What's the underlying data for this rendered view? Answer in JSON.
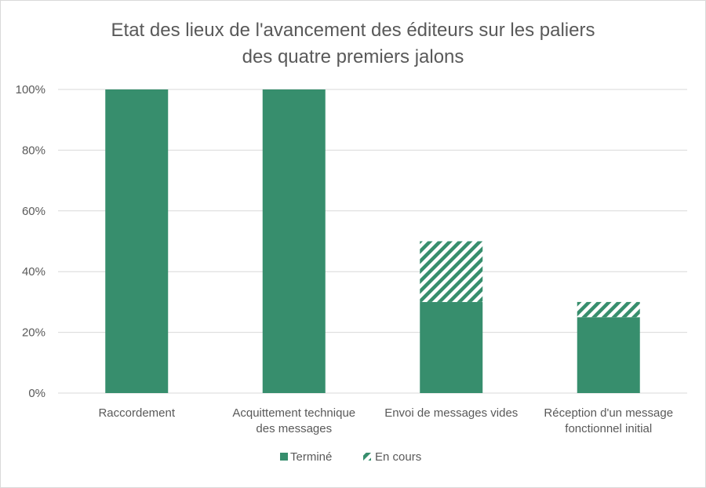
{
  "chart_data": {
    "type": "bar",
    "stacked": true,
    "title_lines": [
      "Etat des lieux de l'avancement des éditeurs sur les paliers",
      "des quatre premiers jalons"
    ],
    "categories": [
      [
        "Raccordement"
      ],
      [
        "Acquittement technique",
        "des messages"
      ],
      [
        "Envoi de messages vides"
      ],
      [
        "Réception d'un message",
        "fonctionnel initial"
      ]
    ],
    "series": [
      {
        "name": "Terminé",
        "values": [
          100,
          100,
          30,
          25
        ],
        "color": "#378e6d",
        "style": "solid"
      },
      {
        "name": "En cours",
        "values": [
          0,
          0,
          20,
          5
        ],
        "color": "#378e6d",
        "style": "diagonal-hatch"
      }
    ],
    "ylim": [
      0,
      100
    ],
    "yticks": [
      0,
      20,
      40,
      60,
      80,
      100
    ],
    "ytick_labels": [
      "0%",
      "20%",
      "40%",
      "60%",
      "80%",
      "100%"
    ],
    "grid": true,
    "legend_position": "bottom"
  }
}
